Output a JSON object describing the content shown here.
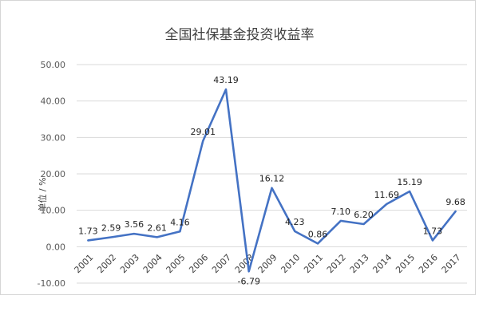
{
  "chart_data": {
    "type": "line",
    "title": "全国社保基金投资收益率",
    "xlabel": "",
    "ylabel": "单位 / %",
    "ylim": [
      -10,
      50
    ],
    "yticks": [
      "-10.00",
      "0.00",
      "10.00",
      "20.00",
      "30.00",
      "40.00",
      "50.00"
    ],
    "grid": true,
    "legend": "none",
    "categories": [
      "2001",
      "2002",
      "2003",
      "2004",
      "2005",
      "2006",
      "2007",
      "2008",
      "2009",
      "2010",
      "2011",
      "2012",
      "2013",
      "2014",
      "2015",
      "2016",
      "2017"
    ],
    "series": [
      {
        "color": "#4472c4",
        "values": [
          1.73,
          2.59,
          3.56,
          2.61,
          4.16,
          29.01,
          43.19,
          -6.79,
          16.12,
          4.23,
          0.86,
          7.1,
          6.2,
          11.69,
          15.19,
          1.73,
          9.68
        ],
        "labels": [
          "1.73",
          "2.59",
          "3.56",
          "2.61",
          "4.16",
          "29.01",
          "43.19",
          "-6.79",
          "16.12",
          "4.23",
          "0.86",
          "7.10",
          "6.20",
          "11.69",
          "15.19",
          "1.73",
          "9.68"
        ]
      }
    ]
  }
}
